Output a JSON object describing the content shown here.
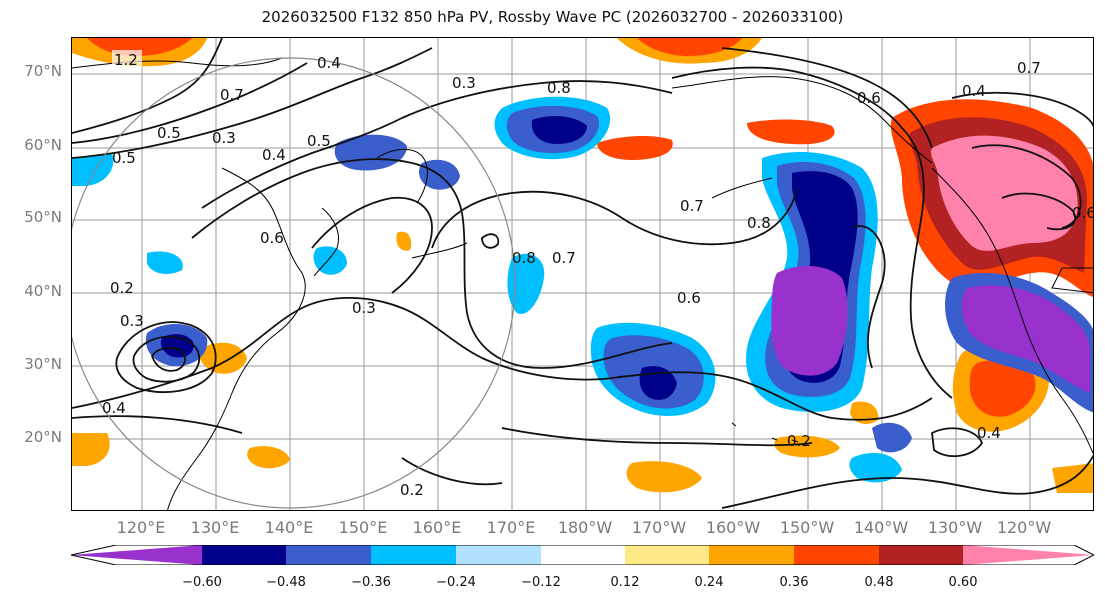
{
  "title": "2026032500 F132 850 hPa PV, Rossby Wave PC (2026032700 - 2026033100)",
  "lat_labels": [
    "70°N",
    "60°N",
    "50°N",
    "40°N",
    "30°N",
    "20°N"
  ],
  "lon_labels": [
    "120°E",
    "130°E",
    "140°E",
    "150°E",
    "160°E",
    "170°E",
    "180°W",
    "170°W",
    "160°W",
    "150°W",
    "140°W",
    "130°W",
    "120°W"
  ],
  "contour_labels": [
    "1.2",
    "0.7",
    "0.5",
    "0.3",
    "0.4",
    "0.5",
    "0.4",
    "0.3",
    "0.8",
    "0.6",
    "0.4",
    "0.7",
    "0.8",
    "0.6",
    "0.7",
    "0.8",
    "0.7",
    "0.6",
    "0.3",
    "0.2",
    "0.3",
    "0.2",
    "0.2",
    "0.4",
    "0.4",
    "0.5",
    "0.6"
  ],
  "colorbar": {
    "ticks": [
      "−0.60",
      "−0.48",
      "−0.36",
      "−0.24",
      "−0.12",
      "0.12",
      "0.24",
      "0.36",
      "0.48",
      "0.60"
    ],
    "colors": [
      "#9932cc",
      "#00008b",
      "#3a5fcd",
      "#00bfff",
      "#b0e2ff",
      "#ffffff",
      "#ffe887",
      "#ffa500",
      "#ff4500",
      "#b22222",
      "#ff82ab"
    ]
  }
}
